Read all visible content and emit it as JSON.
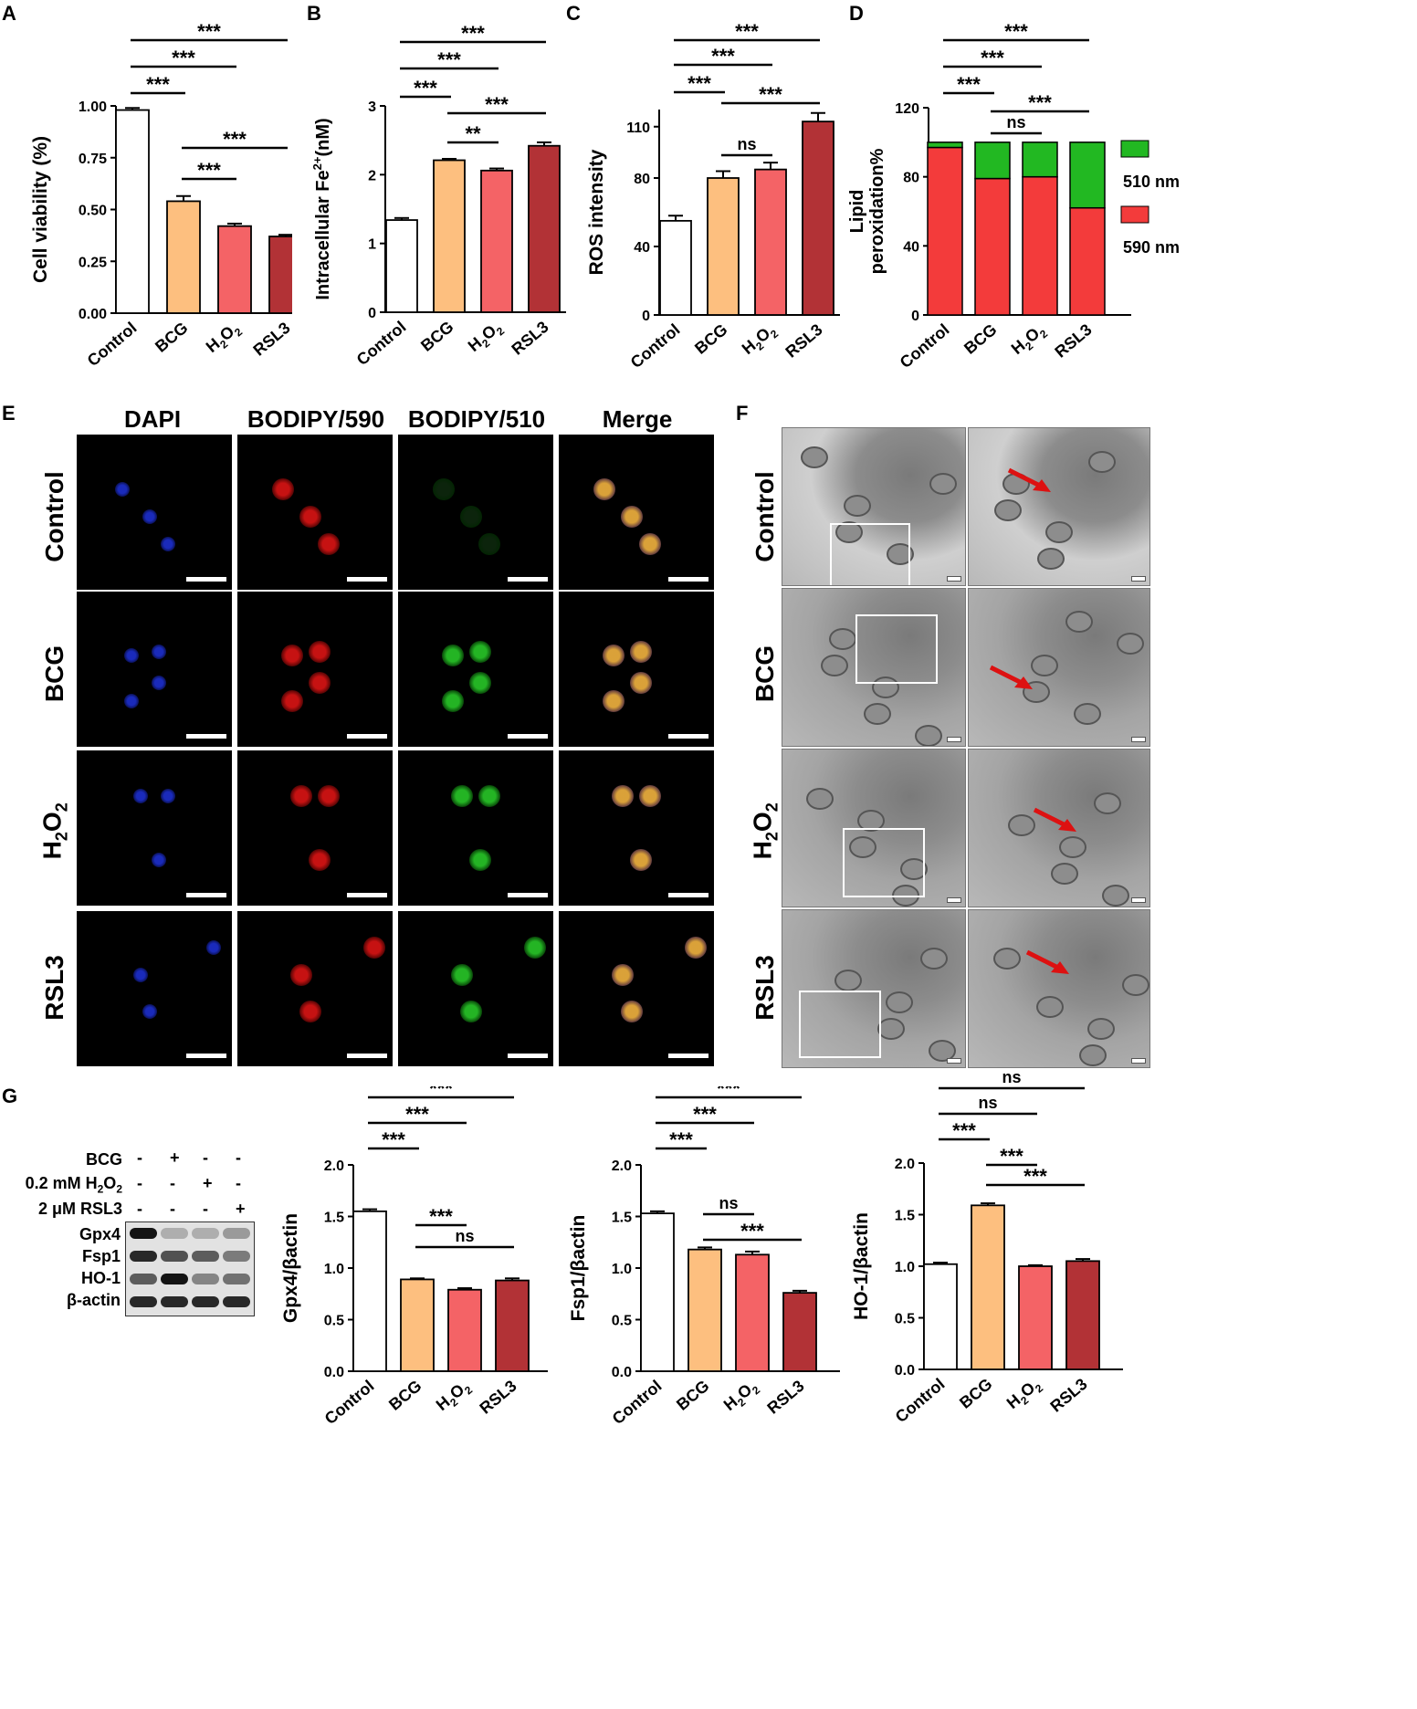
{
  "panels": {
    "A": {
      "label": "A"
    },
    "B": {
      "label": "B"
    },
    "C": {
      "label": "C"
    },
    "D": {
      "label": "D"
    },
    "E": {
      "label": "E",
      "columns": [
        "DAPI",
        "BODIPY/590",
        "BODIPY/510",
        "Merge"
      ],
      "rows": [
        "Control",
        "BCG",
        "H2O2",
        "RSL3"
      ]
    },
    "F": {
      "label": "F",
      "rows": [
        "Control",
        "BCG",
        "H2O2",
        "RSL3"
      ]
    },
    "G": {
      "label": "G"
    }
  },
  "western_blot": {
    "treatments": [
      {
        "label": "BCG",
        "marks": [
          "-",
          "+",
          "-",
          "-"
        ]
      },
      {
        "label": "0.2 mM H2O2",
        "marks": [
          "-",
          "-",
          "+",
          "-"
        ]
      },
      {
        "label": "2 μM RSL3",
        "marks": [
          "-",
          "-",
          "-",
          "+"
        ]
      }
    ],
    "bands": [
      "Gpx4",
      "Fsp1",
      "HO-1",
      "β-actin"
    ]
  },
  "colors": {
    "control": "#ffffff",
    "bcg": "#fdbf7f",
    "h2o2": "#f46366",
    "rsl3": "#b23236",
    "green": "#22b822",
    "red": "#f33b3b"
  },
  "chart_data": [
    {
      "id": "A",
      "type": "bar",
      "categories": [
        "Control",
        "BCG",
        "H2O2",
        "RSL3"
      ],
      "values": [
        0.98,
        0.54,
        0.42,
        0.37
      ],
      "errors": [
        0.01,
        0.025,
        0.012,
        0.008
      ],
      "ylabel": "Cell viability (%)",
      "ylim": [
        0,
        1.0
      ],
      "yticks": [
        "0.00",
        "0.25",
        "0.50",
        "0.75",
        "1.00"
      ],
      "significance": [
        {
          "from": 0,
          "to": 1,
          "label": "***"
        },
        {
          "from": 0,
          "to": 2,
          "label": "***"
        },
        {
          "from": 0,
          "to": 3,
          "label": "***"
        },
        {
          "from": 1,
          "to": 2,
          "label": "***"
        },
        {
          "from": 1,
          "to": 3,
          "label": "***"
        }
      ]
    },
    {
      "id": "B",
      "type": "bar",
      "categories": [
        "Control",
        "BCG",
        "H2O2",
        "RSL3"
      ],
      "values": [
        1.34,
        2.21,
        2.06,
        2.42
      ],
      "errors": [
        0.03,
        0.02,
        0.03,
        0.05
      ],
      "ylabel": "Intracellular Fe2+(nM)",
      "ylim": [
        0,
        3
      ],
      "yticks": [
        "0",
        "1",
        "2",
        "3"
      ],
      "significance": [
        {
          "from": 0,
          "to": 1,
          "label": "***"
        },
        {
          "from": 0,
          "to": 2,
          "label": "***"
        },
        {
          "from": 0,
          "to": 3,
          "label": "***"
        },
        {
          "from": 1,
          "to": 2,
          "label": "**"
        },
        {
          "from": 1,
          "to": 3,
          "label": "***"
        }
      ]
    },
    {
      "id": "C",
      "type": "bar",
      "categories": [
        "Control",
        "BCG",
        "H2O2",
        "RSL3"
      ],
      "values": [
        55,
        80,
        85,
        113
      ],
      "errors": [
        3,
        4,
        4,
        5
      ],
      "ylabel": "ROS intensity",
      "ylim": [
        0,
        120
      ],
      "yticks": [
        "0",
        "40",
        "80",
        "110"
      ],
      "significance": [
        {
          "from": 0,
          "to": 1,
          "label": "***"
        },
        {
          "from": 0,
          "to": 2,
          "label": "***"
        },
        {
          "from": 0,
          "to": 3,
          "label": "***"
        },
        {
          "from": 1,
          "to": 2,
          "label": "ns"
        },
        {
          "from": 1,
          "to": 3,
          "label": "***"
        }
      ]
    },
    {
      "id": "D",
      "type": "stacked-bar",
      "categories": [
        "Control",
        "BCG",
        "H2O2",
        "RSL3"
      ],
      "series": [
        {
          "name": "590 nm",
          "values": [
            97,
            79,
            80,
            62
          ]
        },
        {
          "name": "510 nm",
          "values": [
            3,
            21,
            20,
            38
          ]
        }
      ],
      "ylabel": "Lipid peroxidation%",
      "ylim": [
        0,
        120
      ],
      "yticks": [
        "0",
        "40",
        "80",
        "120"
      ],
      "significance": [
        {
          "from": 0,
          "to": 1,
          "label": "***"
        },
        {
          "from": 0,
          "to": 2,
          "label": "***"
        },
        {
          "from": 0,
          "to": 3,
          "label": "***"
        },
        {
          "from": 1,
          "to": 2,
          "label": "ns"
        },
        {
          "from": 1,
          "to": 3,
          "label": "***"
        }
      ]
    },
    {
      "id": "G1",
      "type": "bar",
      "categories": [
        "Control",
        "BCG",
        "H2O2",
        "RSL3"
      ],
      "values": [
        1.55,
        0.89,
        0.79,
        0.88
      ],
      "errors": [
        0.02,
        0.01,
        0.015,
        0.02
      ],
      "ylabel": "Gpx4/βactin",
      "ylim": [
        0,
        2.0
      ],
      "yticks": [
        "0.0",
        "0.5",
        "1.0",
        "1.5",
        "2.0"
      ],
      "significance": [
        {
          "from": 0,
          "to": 1,
          "label": "***"
        },
        {
          "from": 0,
          "to": 2,
          "label": "***"
        },
        {
          "from": 0,
          "to": 3,
          "label": "***"
        },
        {
          "from": 1,
          "to": 2,
          "label": "***"
        },
        {
          "from": 1,
          "to": 3,
          "label": "ns"
        }
      ]
    },
    {
      "id": "G2",
      "type": "bar",
      "categories": [
        "Control",
        "BCG",
        "H2O2",
        "RSL3"
      ],
      "values": [
        1.53,
        1.18,
        1.13,
        0.76
      ],
      "errors": [
        0.02,
        0.02,
        0.03,
        0.02
      ],
      "ylabel": "Fsp1/βactin",
      "ylim": [
        0,
        2.0
      ],
      "yticks": [
        "0.0",
        "0.5",
        "1.0",
        "1.5",
        "2.0"
      ],
      "significance": [
        {
          "from": 0,
          "to": 1,
          "label": "***"
        },
        {
          "from": 0,
          "to": 2,
          "label": "***"
        },
        {
          "from": 0,
          "to": 3,
          "label": "***"
        },
        {
          "from": 1,
          "to": 2,
          "label": "ns"
        },
        {
          "from": 1,
          "to": 3,
          "label": "***"
        }
      ]
    },
    {
      "id": "G3",
      "type": "bar",
      "categories": [
        "Control",
        "BCG",
        "H2O2",
        "RSL3"
      ],
      "values": [
        1.02,
        1.59,
        1.0,
        1.05
      ],
      "errors": [
        0.015,
        0.02,
        0.01,
        0.02
      ],
      "ylabel": "HO-1/βactin",
      "ylim": [
        0,
        2.0
      ],
      "yticks": [
        "0.0",
        "0.5",
        "1.0",
        "1.5",
        "2.0"
      ],
      "significance": [
        {
          "from": 0,
          "to": 1,
          "label": "***"
        },
        {
          "from": 0,
          "to": 2,
          "label": "ns"
        },
        {
          "from": 0,
          "to": 3,
          "label": "ns"
        },
        {
          "from": 1,
          "to": 2,
          "label": "***"
        },
        {
          "from": 1,
          "to": 3,
          "label": "***"
        }
      ]
    }
  ]
}
